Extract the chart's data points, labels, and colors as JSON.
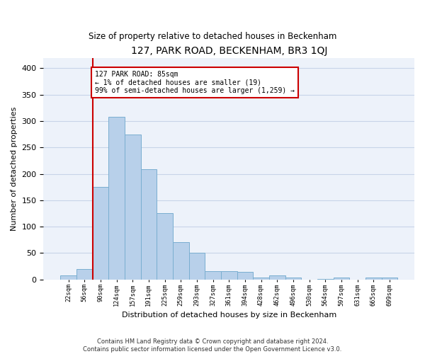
{
  "title": "127, PARK ROAD, BECKENHAM, BR3 1QJ",
  "subtitle": "Size of property relative to detached houses in Beckenham",
  "xlabel": "Distribution of detached houses by size in Beckenham",
  "ylabel": "Number of detached properties",
  "categories": [
    "22sqm",
    "56sqm",
    "90sqm",
    "124sqm",
    "157sqm",
    "191sqm",
    "225sqm",
    "259sqm",
    "293sqm",
    "327sqm",
    "361sqm",
    "394sqm",
    "428sqm",
    "462sqm",
    "496sqm",
    "530sqm",
    "564sqm",
    "597sqm",
    "631sqm",
    "665sqm",
    "699sqm"
  ],
  "values": [
    7,
    20,
    175,
    308,
    275,
    209,
    126,
    71,
    50,
    15,
    15,
    14,
    4,
    8,
    3,
    0,
    1,
    4,
    0,
    4,
    4
  ],
  "bar_color": "#b8d0ea",
  "bar_edge_color": "#7aaed0",
  "grid_color": "#c8d4e8",
  "background_color": "#edf2fa",
  "vline_color": "#cc0000",
  "annotation_text": "127 PARK ROAD: 85sqm\n← 1% of detached houses are smaller (19)\n99% of semi-detached houses are larger (1,259) →",
  "annotation_box_color": "#ffffff",
  "annotation_box_edge": "#cc0000",
  "ylim": [
    0,
    420
  ],
  "footer": "Contains HM Land Registry data © Crown copyright and database right 2024.\nContains public sector information licensed under the Open Government Licence v3.0."
}
